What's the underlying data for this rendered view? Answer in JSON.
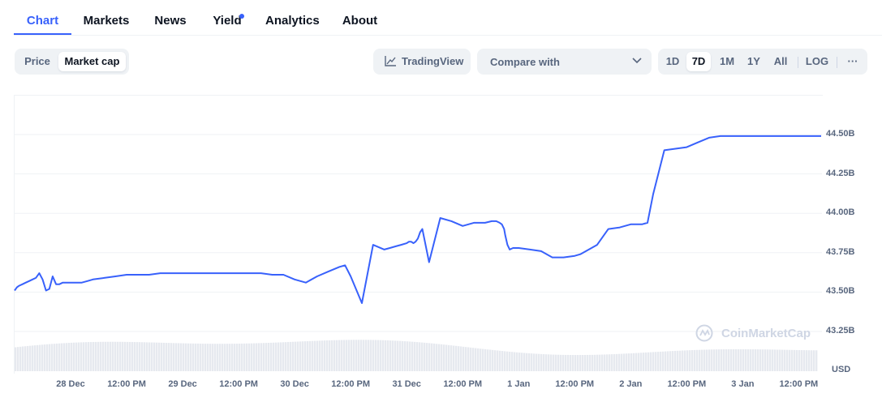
{
  "tabs": [
    {
      "label": "Chart"
    },
    {
      "label": "Markets"
    },
    {
      "label": "News"
    },
    {
      "label": "Yield"
    },
    {
      "label": "Analytics"
    },
    {
      "label": "About"
    }
  ],
  "toolbar": {
    "price_label": "Price",
    "marketcap_label": "Market cap",
    "tradingview_label": "TradingView",
    "compare_label": "Compare with",
    "ranges": [
      "1D",
      "7D",
      "1M",
      "1Y",
      "All"
    ],
    "active_range": "7D",
    "log_label": "LOG",
    "more_label": "···"
  },
  "colors": {
    "accent": "#3861fb",
    "line": "#3861fb",
    "volume": "#e6e9ef"
  },
  "watermark": {
    "text": "CoinMarketCap"
  },
  "chart_data": {
    "type": "line",
    "title": "",
    "currency": "USD",
    "y_ticks": [
      "44.50B",
      "44.25B",
      "44.00B",
      "43.75B",
      "43.50B",
      "43.25B"
    ],
    "y_tick_values": [
      44.5,
      44.25,
      44.0,
      43.75,
      43.5,
      43.25
    ],
    "ylim": [
      43.25,
      44.75
    ],
    "x_labels": [
      "28 Dec",
      "12:00 PM",
      "29 Dec",
      "12:00 PM",
      "30 Dec",
      "12:00 PM",
      "31 Dec",
      "12:00 PM",
      "1 Jan",
      "12:00 PM",
      "2 Jan",
      "12:00 PM",
      "3 Jan",
      "12:00 PM"
    ],
    "x_label_positions": [
      0.5,
      1,
      1.5,
      2,
      2.5,
      3,
      3.5,
      4,
      4.5,
      5,
      5.5,
      6,
      6.5,
      7
    ],
    "xlim": [
      0,
      7.2
    ],
    "series": [
      {
        "name": "Market cap",
        "x": [
          0,
          0.02,
          0.04,
          0.07,
          0.1,
          0.13,
          0.16,
          0.19,
          0.22,
          0.25,
          0.28,
          0.31,
          0.34,
          0.37,
          0.4,
          0.43,
          0.46,
          0.49,
          0.52,
          0.55,
          0.6,
          0.65,
          0.7,
          0.8,
          0.9,
          1.0,
          1.1,
          1.2,
          1.3,
          1.4,
          1.5,
          1.6,
          1.7,
          1.8,
          1.9,
          2.0,
          2.1,
          2.2,
          2.3,
          2.4,
          2.5,
          2.6,
          2.7,
          2.8,
          2.9,
          2.95,
          3.0,
          3.1,
          3.2,
          3.3,
          3.35,
          3.4,
          3.45,
          3.5,
          3.52,
          3.54,
          3.56,
          3.58,
          3.6,
          3.62,
          3.64,
          3.7,
          3.8,
          3.9,
          4.0,
          4.1,
          4.2,
          4.26,
          4.3,
          4.33,
          4.35,
          4.37,
          4.38,
          4.4,
          4.42,
          4.45,
          4.5,
          4.6,
          4.7,
          4.8,
          4.9,
          5.0,
          5.05,
          5.1,
          5.15,
          5.2,
          5.3,
          5.4,
          5.5,
          5.6,
          5.65,
          5.7,
          5.8,
          5.9,
          6.0,
          6.1,
          6.2,
          6.3,
          6.32,
          6.35,
          6.4,
          6.45,
          6.5,
          6.55,
          6.6,
          6.62,
          6.64,
          6.66,
          6.68,
          6.7,
          6.8,
          6.9,
          7.0,
          7.1,
          7.2
        ],
        "values": [
          43.51,
          43.53,
          43.54,
          43.55,
          43.56,
          43.57,
          43.58,
          43.59,
          43.62,
          43.58,
          43.51,
          43.52,
          43.6,
          43.55,
          43.55,
          43.56,
          43.56,
          43.56,
          43.56,
          43.56,
          43.56,
          43.57,
          43.58,
          43.59,
          43.6,
          43.61,
          43.61,
          43.61,
          43.62,
          43.62,
          43.62,
          43.62,
          43.62,
          43.62,
          43.62,
          43.62,
          43.62,
          43.62,
          43.61,
          43.61,
          43.58,
          43.56,
          43.6,
          43.63,
          43.66,
          43.67,
          43.6,
          43.43,
          43.8,
          43.77,
          43.78,
          43.79,
          43.8,
          43.81,
          43.82,
          43.82,
          43.81,
          43.82,
          43.84,
          43.88,
          43.9,
          43.69,
          43.97,
          43.95,
          43.92,
          43.94,
          43.94,
          43.95,
          43.95,
          43.94,
          43.93,
          43.9,
          43.86,
          43.8,
          43.77,
          43.78,
          43.78,
          43.77,
          43.76,
          43.72,
          43.72,
          43.73,
          43.74,
          43.76,
          43.78,
          43.8,
          43.9,
          43.91,
          43.93,
          43.93,
          43.94,
          44.12,
          44.4,
          44.41,
          44.42,
          44.45,
          44.48,
          44.49,
          44.49,
          44.49,
          44.49,
          44.49,
          44.49,
          44.49,
          44.49,
          44.49,
          44.49,
          44.49,
          44.49,
          44.49,
          44.49,
          44.49,
          44.49,
          44.49,
          44.49
        ]
      }
    ]
  }
}
